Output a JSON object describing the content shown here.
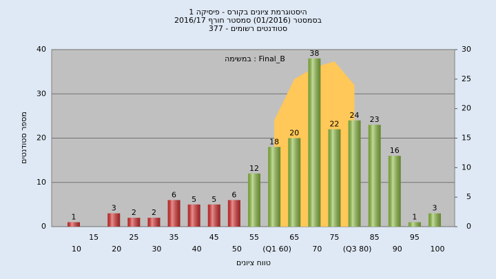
{
  "chart_data": {
    "type": "bar",
    "title": "היסטוגרמת ציונים בקורס - פיסיקה 1",
    "subtitle": "בסמסטר  (01/2016)  סמסטר חורף 2016/17",
    "subtitle2": "סטודנטים רשומים - 377",
    "annotation": "במשימה : Final_B",
    "y_label": "מספר סטודנטים",
    "x_label": "טווח ציונים",
    "categories": [
      "10",
      "15",
      "20",
      "25",
      "30",
      "35",
      "40",
      "45",
      "50",
      "55",
      "(Q1 60)",
      "65",
      "70",
      "75",
      "(Q3 80)",
      "85",
      "90",
      "95",
      "100"
    ],
    "values": [
      1,
      0,
      3,
      2,
      2,
      6,
      5,
      5,
      6,
      12,
      18,
      20,
      38,
      22,
      24,
      23,
      16,
      1,
      3
    ],
    "bar_colors": [
      "#d93030",
      "#d93030",
      "#d93030",
      "#d93030",
      "#d93030",
      "#d93030",
      "#d93030",
      "#d93030",
      "#d93030",
      "#8fbf45",
      "#8fbf45",
      "#8fbf45",
      "#8fbf45",
      "#8fbf45",
      "#8fbf45",
      "#8fbf45",
      "#8fbf45",
      "#8fbf45",
      "#8fbf45"
    ],
    "curve": {
      "color": "#ffc858",
      "axis": "y2",
      "values": [
        null,
        null,
        null,
        null,
        null,
        null,
        null,
        null,
        null,
        null,
        18,
        25,
        27,
        28,
        24,
        null,
        null,
        null,
        null
      ]
    },
    "ylim": [
      0,
      40
    ],
    "yticks": [
      0,
      10,
      20,
      30,
      40
    ],
    "y2lim": [
      0,
      30
    ],
    "y2ticks": [
      0,
      5,
      10,
      15,
      20,
      25,
      30
    ],
    "grid": true
  }
}
